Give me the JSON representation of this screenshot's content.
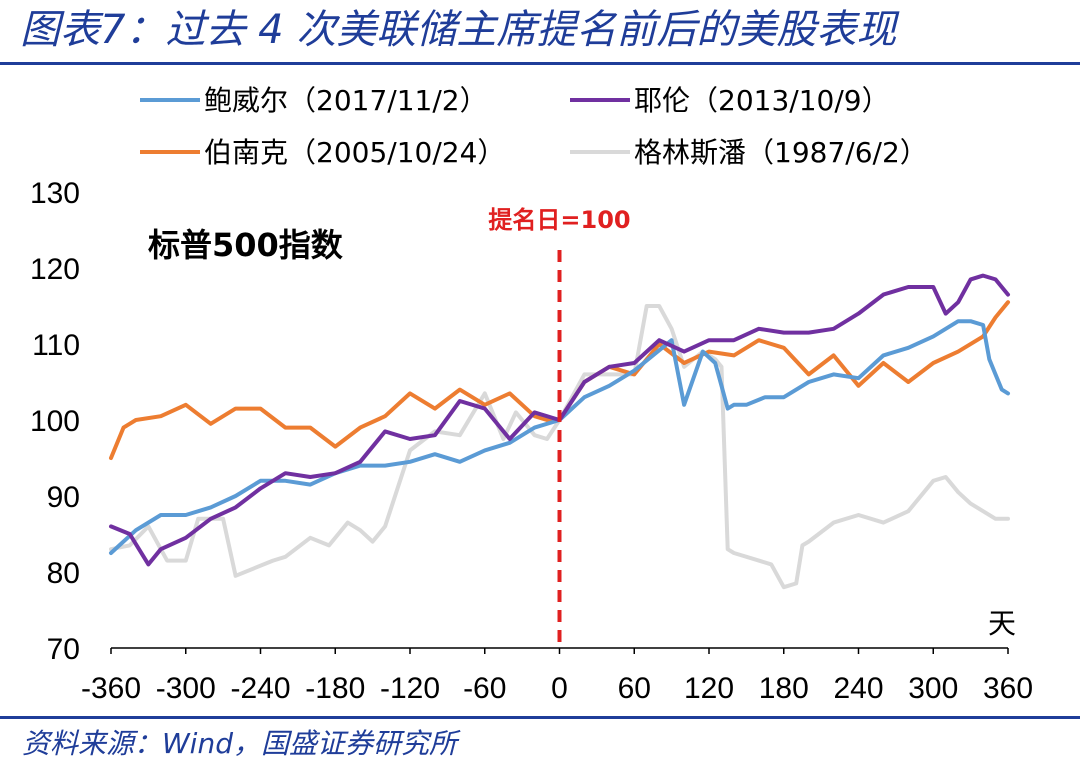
{
  "figure_title": "图表7：过去 4 次美联储主席提名前后的美股表现",
  "source": "资料来源：Wind，国盛证券研究所",
  "colors": {
    "brand": "#1f3d99",
    "marker": "#e02020",
    "axis": "#000000"
  },
  "chart_data": {
    "type": "line",
    "title": "标普500指数",
    "xlabel": "天",
    "ylabel": "",
    "xlim": [
      -360,
      360
    ],
    "ylim": [
      70,
      130
    ],
    "xticks": [
      -360,
      -300,
      -240,
      -180,
      -120,
      -60,
      0,
      60,
      120,
      180,
      240,
      300,
      360
    ],
    "yticks": [
      70,
      80,
      90,
      100,
      110,
      120,
      130
    ],
    "annotation": {
      "x": 0,
      "label": "提名日=100",
      "color": "#e02020"
    },
    "series": [
      {
        "name": "鲍威尔（2017/11/2）",
        "color": "#5b9bd5",
        "x": [
          -360,
          -340,
          -320,
          -300,
          -280,
          -260,
          -240,
          -220,
          -200,
          -180,
          -160,
          -140,
          -120,
          -100,
          -80,
          -60,
          -40,
          -20,
          0,
          20,
          40,
          60,
          75,
          90,
          100,
          115,
          125,
          130,
          135,
          140,
          150,
          165,
          180,
          200,
          220,
          240,
          260,
          280,
          300,
          320,
          330,
          340,
          345,
          350,
          355,
          360
        ],
        "values": [
          82.5,
          85.5,
          87.5,
          87.5,
          88.5,
          90,
          92,
          92,
          91.5,
          93,
          94,
          94,
          94.5,
          95.5,
          94.5,
          96,
          97,
          99,
          100,
          103,
          104.5,
          106.5,
          108.5,
          110.5,
          102,
          109,
          107.5,
          104.5,
          101.5,
          102,
          102,
          103,
          103,
          105,
          106,
          105.5,
          108.5,
          109.5,
          111,
          113,
          113,
          112.5,
          108,
          106,
          104,
          103.5
        ]
      },
      {
        "name": "耶伦（2013/10/9）",
        "color": "#7030a0",
        "x": [
          -360,
          -345,
          -330,
          -320,
          -300,
          -280,
          -260,
          -240,
          -220,
          -200,
          -180,
          -160,
          -140,
          -120,
          -100,
          -80,
          -60,
          -40,
          -20,
          0,
          20,
          40,
          60,
          80,
          100,
          120,
          140,
          160,
          180,
          200,
          220,
          240,
          260,
          280,
          300,
          310,
          320,
          330,
          340,
          350,
          360
        ],
        "values": [
          86,
          85,
          81,
          83,
          84.5,
          87,
          88.5,
          91,
          93,
          92.5,
          93,
          94.5,
          98.5,
          97.5,
          98,
          102.5,
          101.5,
          97.5,
          101,
          100,
          105,
          107,
          107.5,
          110.5,
          109,
          110.5,
          110.5,
          112,
          111.5,
          111.5,
          112,
          114,
          116.5,
          117.5,
          117.5,
          114,
          115.5,
          118.5,
          119,
          118.5,
          116.5
        ]
      },
      {
        "name": "伯南克（2005/10/24）",
        "color": "#ed7d31",
        "x": [
          -360,
          -350,
          -340,
          -320,
          -300,
          -280,
          -260,
          -240,
          -220,
          -200,
          -180,
          -160,
          -140,
          -120,
          -100,
          -80,
          -60,
          -40,
          -20,
          -10,
          0,
          20,
          40,
          60,
          80,
          100,
          120,
          140,
          160,
          180,
          200,
          220,
          240,
          260,
          280,
          300,
          320,
          340,
          350,
          360
        ],
        "values": [
          95,
          99,
          100,
          100.5,
          102,
          99.5,
          101.5,
          101.5,
          99,
          99,
          96.5,
          99,
          100.5,
          103.5,
          101.5,
          104,
          102,
          103.5,
          100.5,
          100,
          100,
          105,
          107,
          106,
          110,
          107.5,
          109,
          108.5,
          110.5,
          109.5,
          106,
          108.5,
          104.5,
          107.5,
          105,
          107.5,
          109,
          111,
          113.5,
          115.5
        ]
      },
      {
        "name": "格林斯潘（1987/6/2）",
        "color": "#d9d9d9",
        "x": [
          -360,
          -345,
          -330,
          -315,
          -300,
          -290,
          -270,
          -260,
          -245,
          -230,
          -220,
          -200,
          -185,
          -170,
          -160,
          -150,
          -140,
          -120,
          -100,
          -80,
          -60,
          -45,
          -35,
          -20,
          -10,
          0,
          20,
          40,
          60,
          70,
          80,
          90,
          100,
          115,
          125,
          130,
          135,
          140,
          160,
          170,
          180,
          190,
          195,
          200,
          220,
          240,
          260,
          280,
          300,
          310,
          320,
          330,
          340,
          350,
          360
        ],
        "values": [
          83,
          83.5,
          86,
          81.5,
          81.5,
          87,
          87,
          79.5,
          80.5,
          81.5,
          82,
          84.5,
          83.5,
          86.5,
          85.5,
          84,
          86,
          96,
          98.5,
          98,
          103.5,
          97.5,
          101,
          98,
          97.5,
          100,
          106,
          106,
          106,
          115,
          115,
          112,
          107,
          109,
          108,
          107,
          83,
          82.5,
          81.5,
          81,
          78,
          78.5,
          83.5,
          84,
          86.5,
          87.5,
          86.5,
          88,
          92,
          92.5,
          90.5,
          89,
          88,
          87,
          87
        ]
      }
    ]
  }
}
